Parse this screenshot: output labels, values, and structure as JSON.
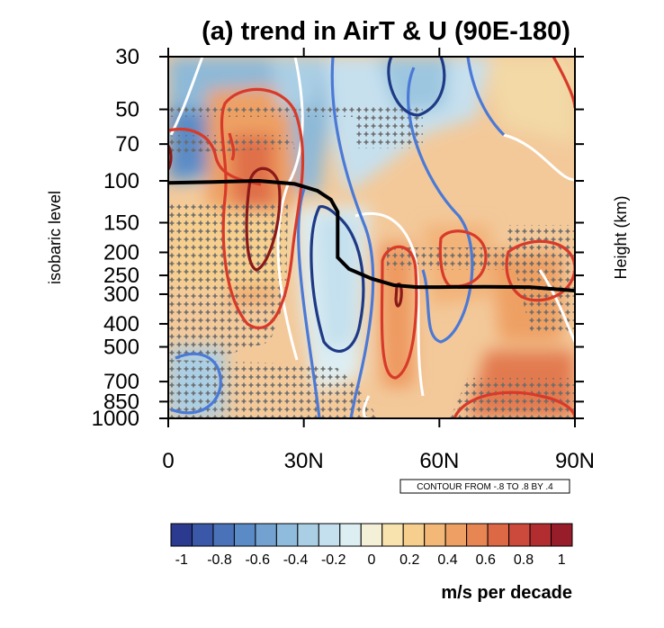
{
  "chart_data": {
    "type": "heatmap",
    "title": "(a) trend in AirT & U (90E-180)",
    "ylabel": "isobaric level",
    "ylabel_right": "Height (km)",
    "x_ticks": [
      "0",
      "30N",
      "60N",
      "90N"
    ],
    "x_range": [
      0,
      90
    ],
    "y_ticks": [
      "30",
      "50",
      "70",
      "100",
      "150",
      "200",
      "250",
      "300",
      "400",
      "500",
      "700",
      "850",
      "1000"
    ],
    "y_range_hpa": [
      1000,
      30
    ],
    "y_scale": "log",
    "contour_note": "CONTOUR FROM -.8 TO .8 BY .4",
    "colorbar": {
      "ticks": [
        "-1",
        "-0.8",
        "-0.6",
        "-0.4",
        "-0.2",
        "0",
        "0.2",
        "0.4",
        "0.6",
        "0.8",
        "1"
      ],
      "units": "m/s per decade",
      "colors": [
        "#2b3a8f",
        "#3b58a8",
        "#4a72b8",
        "#5a8bc6",
        "#73a2d1",
        "#8fbbdc",
        "#aacfe5",
        "#c4e0ee",
        "#ddeef3",
        "#f4f0d8",
        "#f8e2ad",
        "#f6cf8e",
        "#f3b877",
        "#eea064",
        "#e78553",
        "#dc6846",
        "#cc4a3b",
        "#b22d30",
        "#971d2a"
      ]
    },
    "tropopause_line": {
      "lat": [
        0,
        10,
        20,
        28,
        33,
        36,
        37.5,
        37.5,
        40,
        45,
        50,
        55,
        60,
        70,
        80,
        90
      ],
      "hpa": [
        102,
        101,
        100,
        103,
        110,
        120,
        135,
        210,
        235,
        258,
        275,
        280,
        280,
        279,
        280,
        290
      ]
    }
  }
}
